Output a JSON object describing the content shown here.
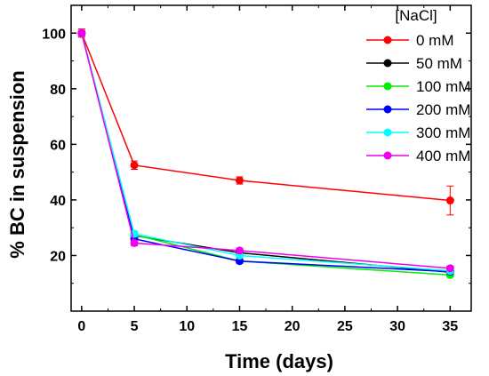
{
  "chart_data": {
    "type": "line",
    "xlabel": "Time (days)",
    "ylabel": "% BC in suspension",
    "xlim": [
      -1,
      37
    ],
    "ylim": [
      0,
      110
    ],
    "x_ticks": [
      0,
      5,
      10,
      15,
      20,
      25,
      30,
      35
    ],
    "y_ticks": [
      20,
      40,
      60,
      80,
      100
    ],
    "legend": {
      "title": "[NaCl]",
      "placement": "top-right"
    },
    "series": [
      {
        "name": "0 mM",
        "color": "#ff0000",
        "x": [
          0,
          5,
          15,
          35
        ],
        "y": [
          100,
          52.5,
          47,
          39.8
        ],
        "err": [
          1.5,
          1.5,
          1.3,
          5.2
        ]
      },
      {
        "name": "50 mM",
        "color": "#000000",
        "x": [
          0,
          5,
          15,
          35
        ],
        "y": [
          100,
          27.2,
          21,
          14
        ],
        "err": [
          1.0,
          1.0,
          0.8,
          0.8
        ]
      },
      {
        "name": "100 mM",
        "color": "#00ee00",
        "x": [
          0,
          5,
          15,
          35
        ],
        "y": [
          100,
          27.5,
          18,
          13
        ],
        "err": [
          1.0,
          1.0,
          0.8,
          0.8
        ]
      },
      {
        "name": "200 mM",
        "color": "#0000ff",
        "x": [
          0,
          5,
          15,
          35
        ],
        "y": [
          100,
          26,
          18,
          14.2
        ],
        "err": [
          1.0,
          1.0,
          0.8,
          0.8
        ]
      },
      {
        "name": "300 mM",
        "color": "#00ffff",
        "x": [
          0,
          5,
          15,
          35
        ],
        "y": [
          100,
          27.8,
          20,
          14.5
        ],
        "err": [
          1.0,
          1.0,
          0.8,
          0.8
        ]
      },
      {
        "name": "400 mM",
        "color": "#ee00ee",
        "x": [
          0,
          5,
          15,
          35
        ],
        "y": [
          100,
          24.5,
          21.8,
          15.4
        ],
        "err": [
          1.0,
          1.0,
          0.8,
          0.8
        ]
      }
    ]
  }
}
